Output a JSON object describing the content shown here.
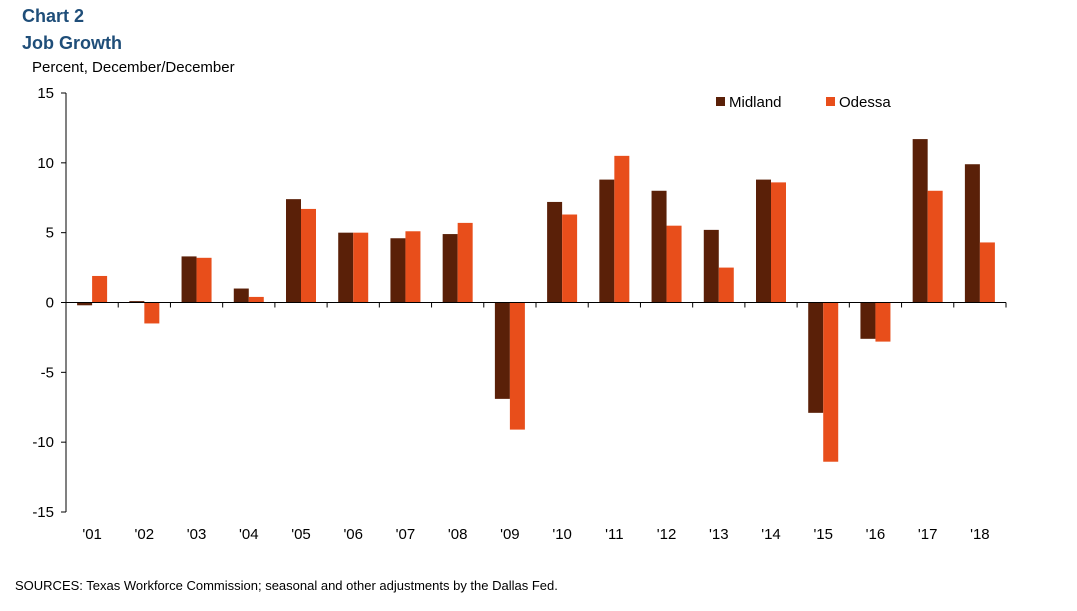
{
  "header": {
    "chart_number": "Chart 2",
    "title": "Job Growth",
    "units": "Percent, December/December"
  },
  "footer": {
    "source": "SOURCES:  Texas Workforce Commission;  seasonal and other adjustments by the Dallas Fed."
  },
  "colors": {
    "midland": "#5a2008",
    "odessa": "#e84e1b",
    "axis": "#000000"
  },
  "chart_data": {
    "type": "bar",
    "title": "Job Growth",
    "ylabel": "Percent, December/December",
    "xlabel": "",
    "ylim": [
      -15,
      15
    ],
    "yticks": [
      -15,
      -10,
      -5,
      0,
      5,
      10,
      15
    ],
    "grid": false,
    "legend": "top-right",
    "categories": [
      "'01",
      "'02",
      "'03",
      "'04",
      "'05",
      "'06",
      "'07",
      "'08",
      "'09",
      "'10",
      "'11",
      "'12",
      "'13",
      "'14",
      "'15",
      "'16",
      "'17",
      "'18"
    ],
    "series": [
      {
        "name": "Midland",
        "values": [
          -0.2,
          0.1,
          3.3,
          1.0,
          7.4,
          5.0,
          4.6,
          4.9,
          -6.9,
          7.2,
          8.8,
          8.0,
          5.2,
          8.8,
          -7.9,
          -2.6,
          11.7,
          9.9
        ]
      },
      {
        "name": "Odessa",
        "values": [
          1.9,
          -1.5,
          3.2,
          0.4,
          6.7,
          5.0,
          5.1,
          5.7,
          -9.1,
          6.3,
          10.5,
          5.5,
          2.5,
          8.6,
          -11.4,
          -2.8,
          8.0,
          4.3
        ]
      }
    ]
  }
}
